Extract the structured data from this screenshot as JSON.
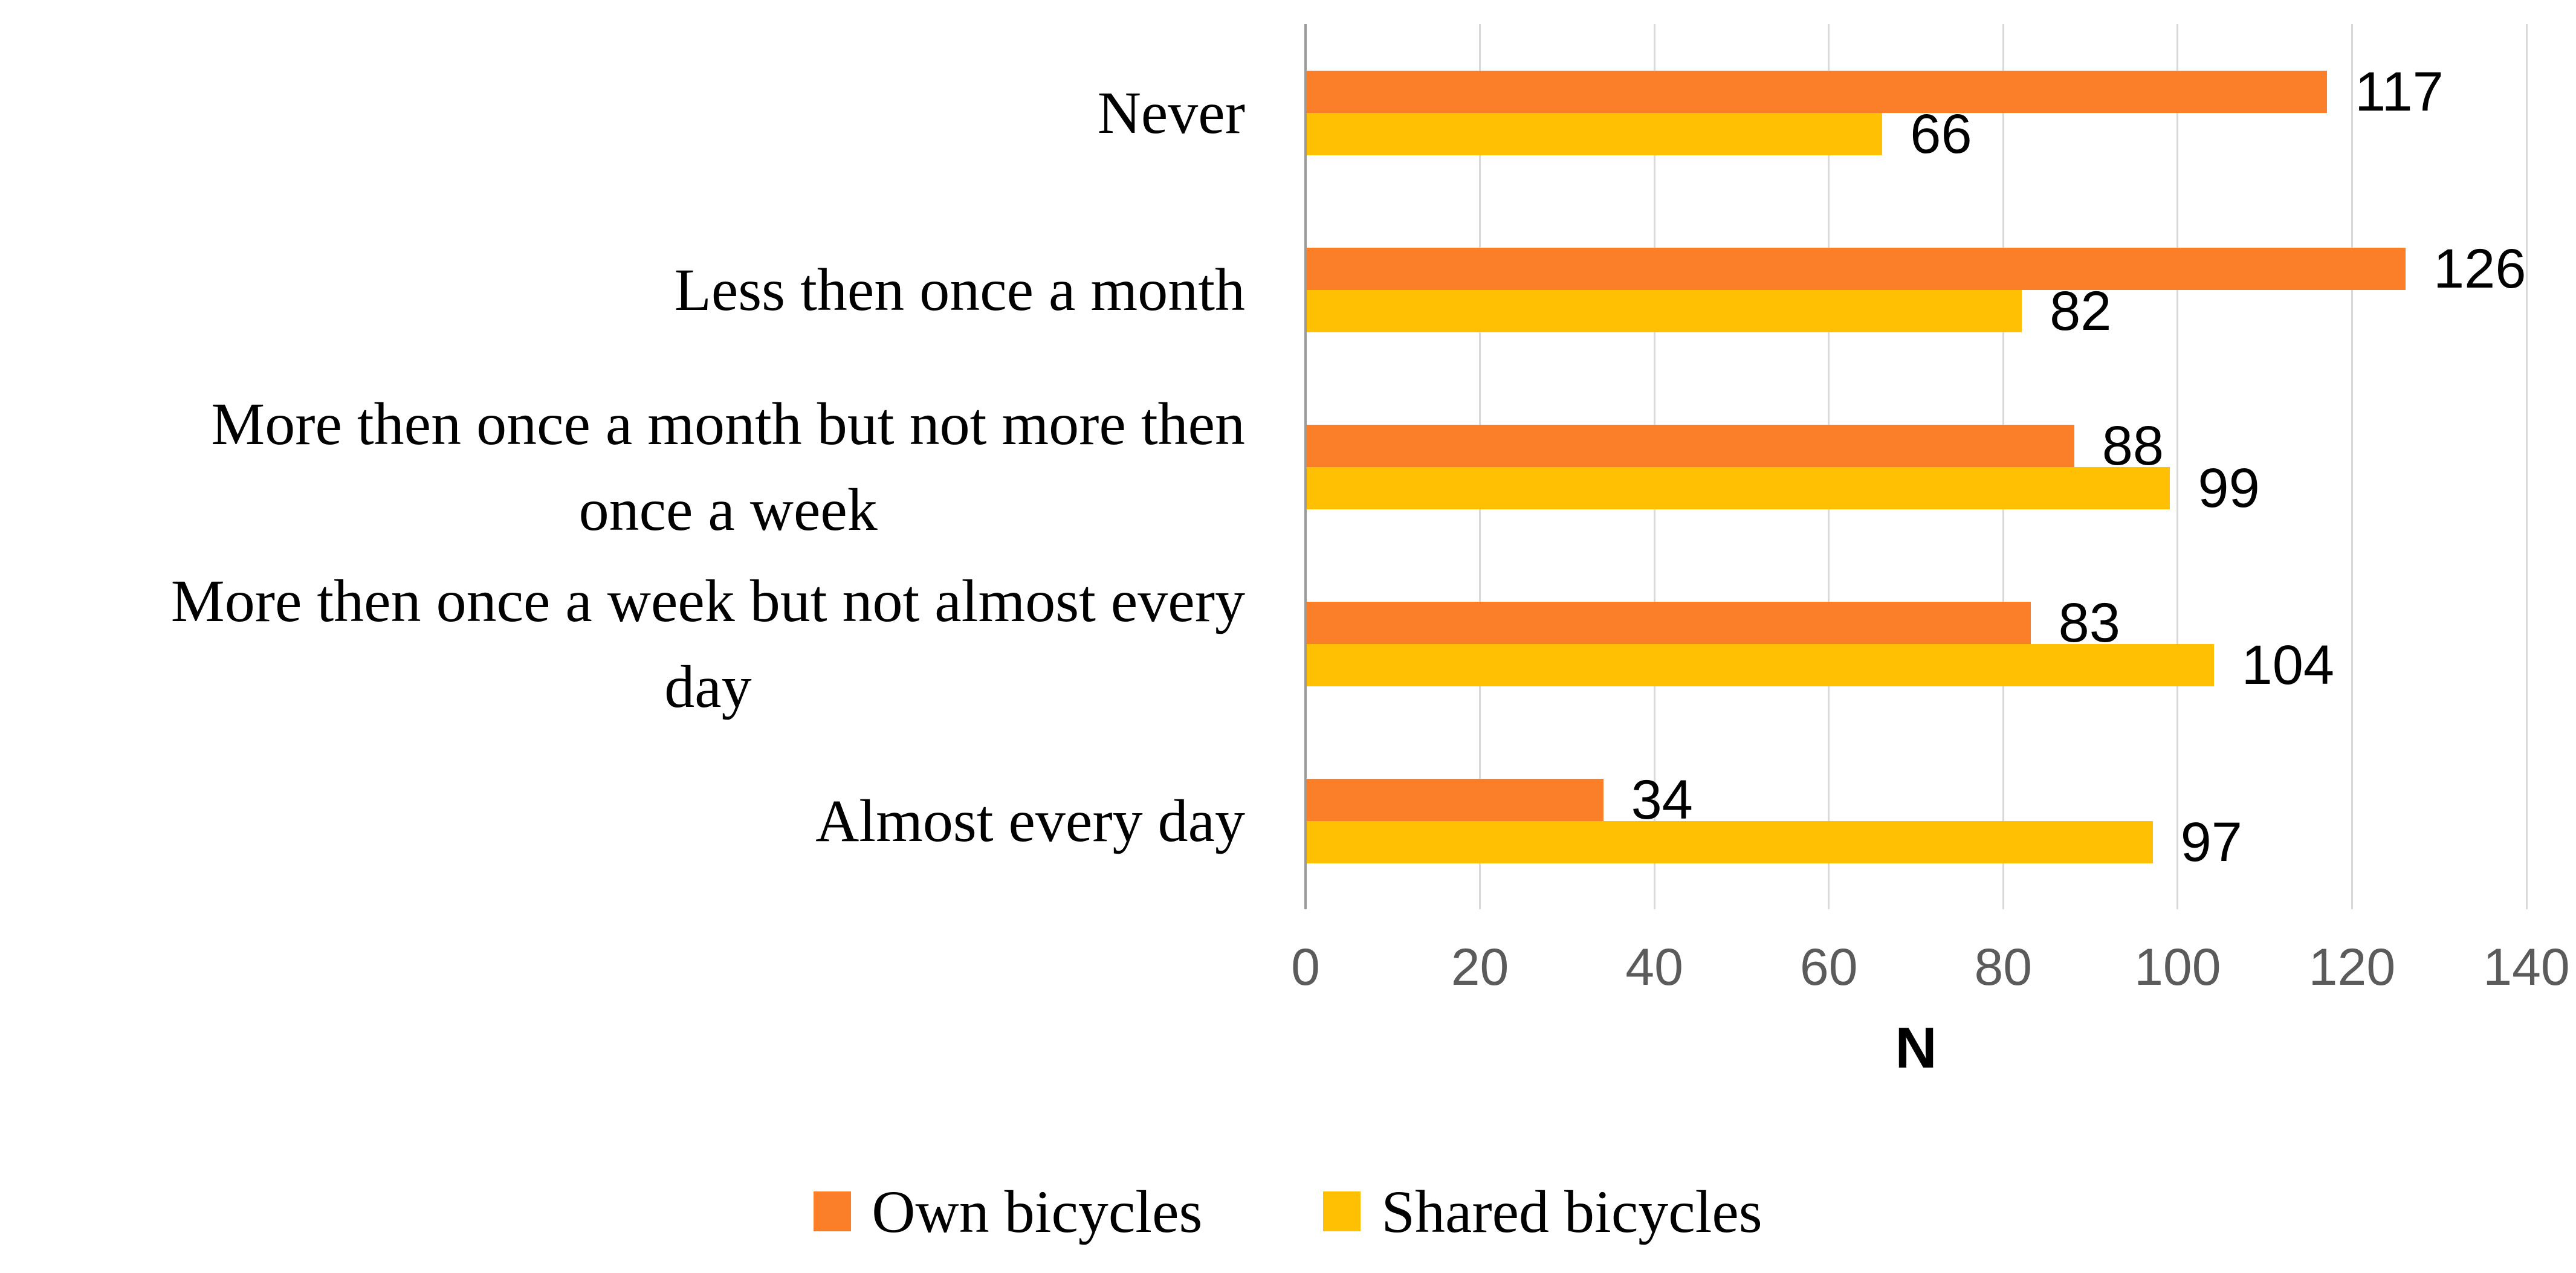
{
  "chart_data": {
    "type": "bar",
    "orientation": "horizontal",
    "title": "",
    "xlabel": "N",
    "ylabel": "",
    "xlim": [
      0,
      140
    ],
    "x_ticks": [
      0,
      20,
      40,
      60,
      80,
      100,
      120,
      140
    ],
    "grid": true,
    "legend_position": "bottom",
    "value_labels": true,
    "categories": [
      "Never",
      "Less then once a month",
      "More then once a month but not more then once a week",
      "More then once a week but not almost every day",
      "Almost every day"
    ],
    "category_lines": [
      [
        "Never"
      ],
      [
        "Less then once a month"
      ],
      [
        "More then once a month but not more then",
        "once a week"
      ],
      [
        "More then once a week but not almost every",
        "day"
      ],
      [
        "Almost every day"
      ]
    ],
    "series": [
      {
        "name": "Own bicycles",
        "color": "#fb7e28",
        "values": [
          117,
          126,
          88,
          83,
          34
        ]
      },
      {
        "name": "Shared bicycles",
        "color": "#ffc003",
        "values": [
          66,
          82,
          99,
          104,
          97
        ]
      }
    ]
  },
  "colors": {
    "gridline": "#d9d9d9",
    "axis_line": "#9b9b9b",
    "tick_text": "#5b5b5b",
    "label_text": "#000000",
    "background": "#ffffff"
  }
}
